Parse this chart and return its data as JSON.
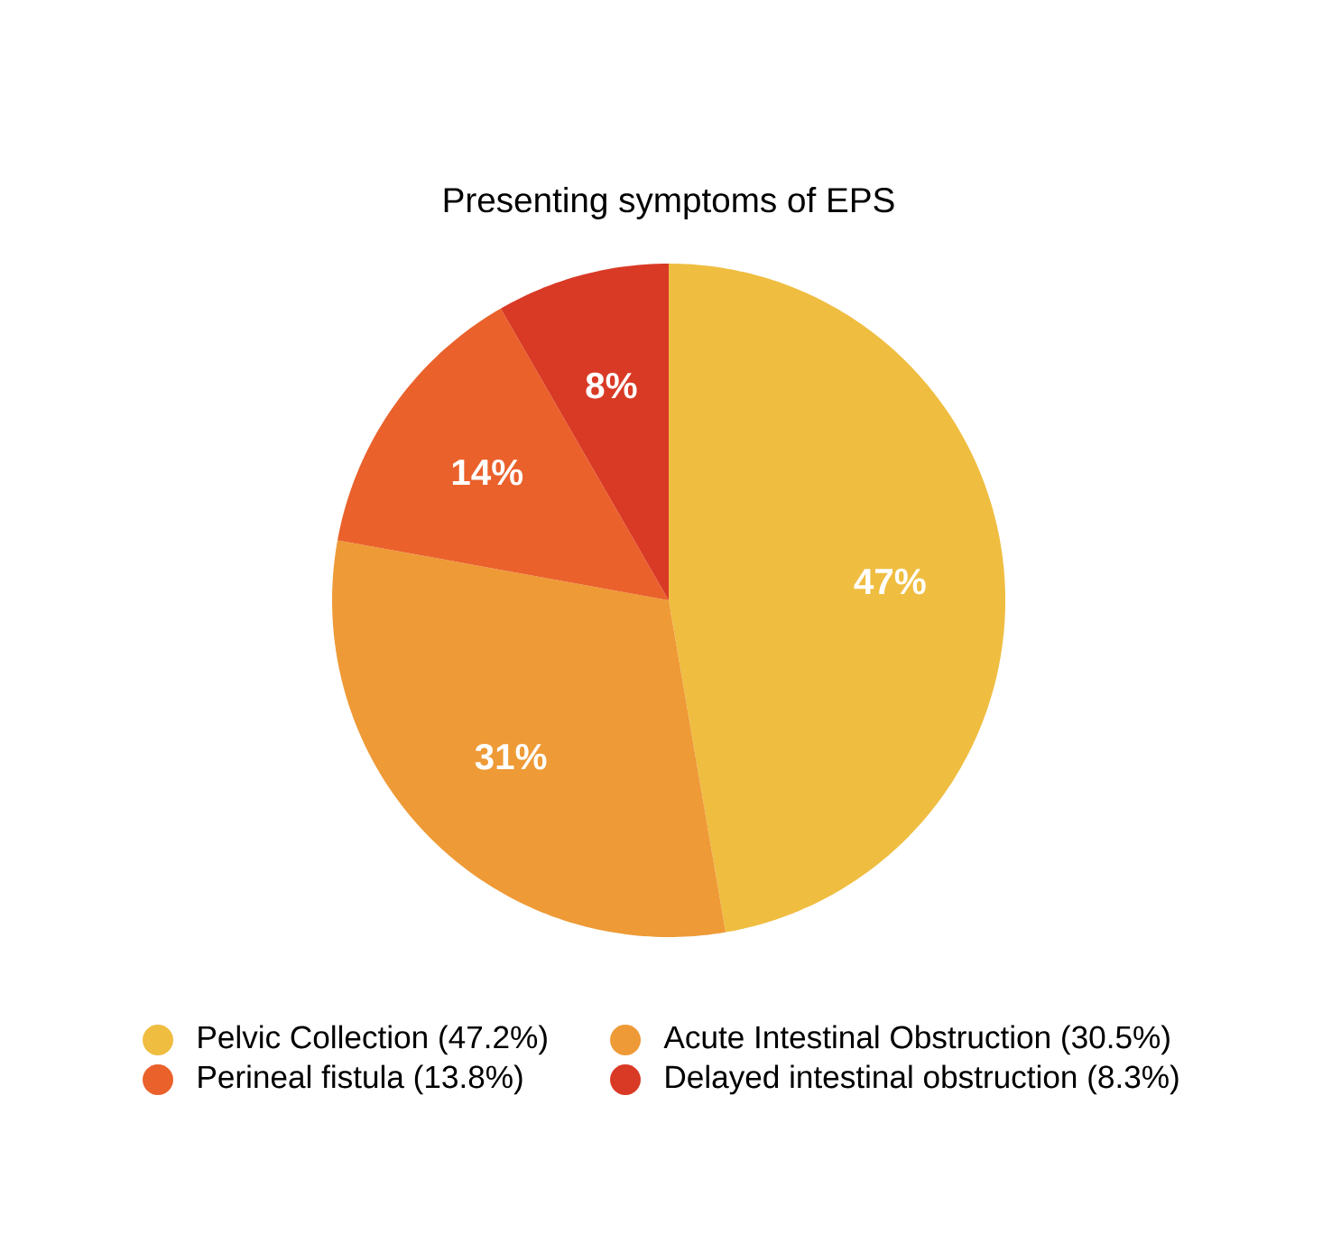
{
  "chart_data": {
    "type": "pie",
    "title": "Presenting symptoms of EPS",
    "categories": [
      "Pelvic Collection (47.2%)",
      "Acute Intestinal Obstruction (30.5%)",
      "Perineal fistula (13.8%)",
      "Delayed intestinal obstruction (8.3%)"
    ],
    "values": [
      47.2,
      30.5,
      13.8,
      8.3
    ],
    "value_labels": [
      "47%",
      "31%",
      "14%",
      "8%"
    ],
    "colors": [
      "#efbd40",
      "#ee9a36",
      "#ea612b",
      "#d93a25"
    ],
    "legend": "bottom"
  }
}
